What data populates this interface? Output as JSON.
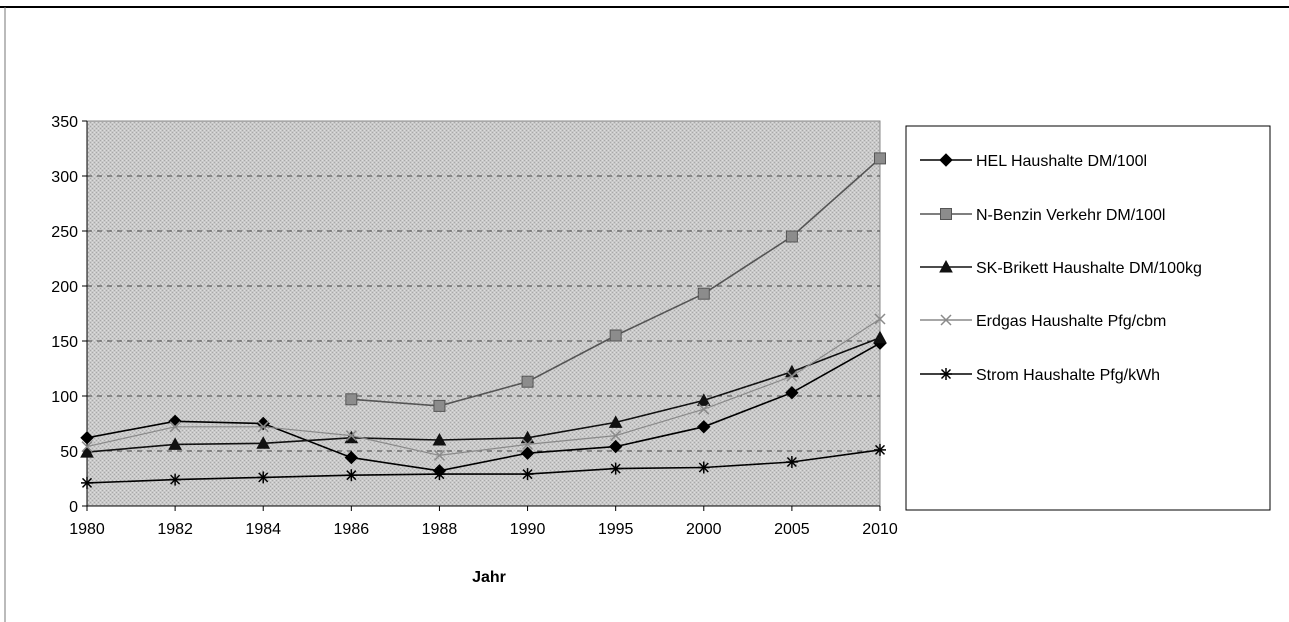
{
  "chart_data": {
    "type": "line",
    "title": "",
    "xlabel": "Jahr",
    "ylabel": "",
    "ylim": [
      0,
      350
    ],
    "yticks": [
      0,
      50,
      100,
      150,
      200,
      250,
      300,
      350
    ],
    "grid": "horizontal dashed",
    "legend_position": "right",
    "categories": [
      "1980",
      "1982",
      "1984",
      "1986",
      "1988",
      "1990",
      "1995",
      "2000",
      "2005",
      "2010"
    ],
    "series": [
      {
        "name": "HEL Haushalte DM/100l",
        "marker": "diamond",
        "color": "#000000",
        "values": [
          62,
          77,
          75,
          44,
          32,
          48,
          54,
          72,
          103,
          148
        ]
      },
      {
        "name": "N-Benzin Verkehr DM/100l",
        "marker": "square",
        "color": "#555555",
        "values": [
          null,
          null,
          null,
          97,
          91,
          113,
          155,
          193,
          245,
          316
        ]
      },
      {
        "name": "SK-Brikett Haushalte DM/100kg",
        "marker": "triangle",
        "color": "#111111",
        "values": [
          49,
          56,
          57,
          62,
          60,
          62,
          76,
          96,
          122,
          153
        ]
      },
      {
        "name": "Erdgas Haushalte Pfg/cbm",
        "marker": "x",
        "color": "#8a8a8a",
        "values": [
          54,
          72,
          72,
          64,
          46,
          56,
          64,
          88,
          118,
          170
        ]
      },
      {
        "name": "Strom Haushalte Pfg/kWh",
        "marker": "star",
        "color": "#000000",
        "values": [
          21,
          24,
          26,
          28,
          29,
          29,
          34,
          35,
          40,
          51
        ]
      }
    ]
  }
}
